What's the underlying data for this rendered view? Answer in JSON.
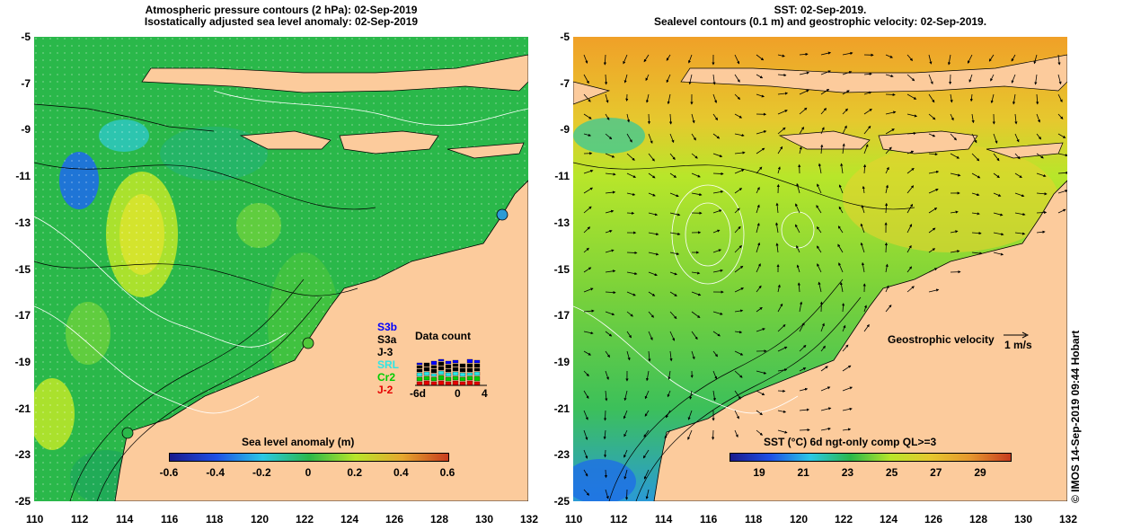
{
  "left_panel": {
    "title_line1": "Atmospheric pressure contours (2 hPa): 02-Sep-2019",
    "title_line2": "Isostatically adjusted sea level anomaly: 02-Sep-2019",
    "colorbar": {
      "title": "Sea level anomaly (m)",
      "ticks": [
        "-0.6",
        "-0.4",
        "-0.2",
        "0",
        "0.2",
        "0.4",
        "0.6"
      ]
    },
    "data_count": {
      "title": "Data count",
      "missions": [
        {
          "name": "S3b",
          "color": "#0000ff"
        },
        {
          "name": "S3a",
          "color": "#000000"
        },
        {
          "name": "J-3",
          "color": "#000000"
        },
        {
          "name": "SRL",
          "color": "#2ee6e6"
        },
        {
          "name": "Cr2",
          "color": "#00cc00"
        },
        {
          "name": "J-2",
          "color": "#e60000"
        }
      ],
      "axis_ticks": [
        "-6d",
        "0",
        "4"
      ]
    }
  },
  "right_panel": {
    "title_line1": "SST: 02-Sep-2019.",
    "title_line2": "Sealevel contours (0.1 m) and geostrophic velocity: 02-Sep-2019.",
    "colorbar": {
      "title": "SST (°C) 6d ngt-only comp QL>=3",
      "ticks": [
        "19",
        "21",
        "23",
        "25",
        "27",
        "29"
      ]
    },
    "velocity_label": "Geostrophic velocity",
    "velocity_scale": "1 m/s"
  },
  "axes": {
    "lon_ticks": [
      "110",
      "112",
      "114",
      "116",
      "118",
      "120",
      "122",
      "124",
      "126",
      "128",
      "130",
      "132"
    ],
    "lat_ticks": [
      "-5",
      "-7",
      "-9",
      "-11",
      "-13",
      "-15",
      "-17",
      "-19",
      "-21",
      "-23",
      "-25"
    ]
  },
  "credit": "© IMOS 14-Sep-2019 09:44 Hobart",
  "colors": {
    "land": "#fccb9c",
    "coast": "#000000"
  }
}
